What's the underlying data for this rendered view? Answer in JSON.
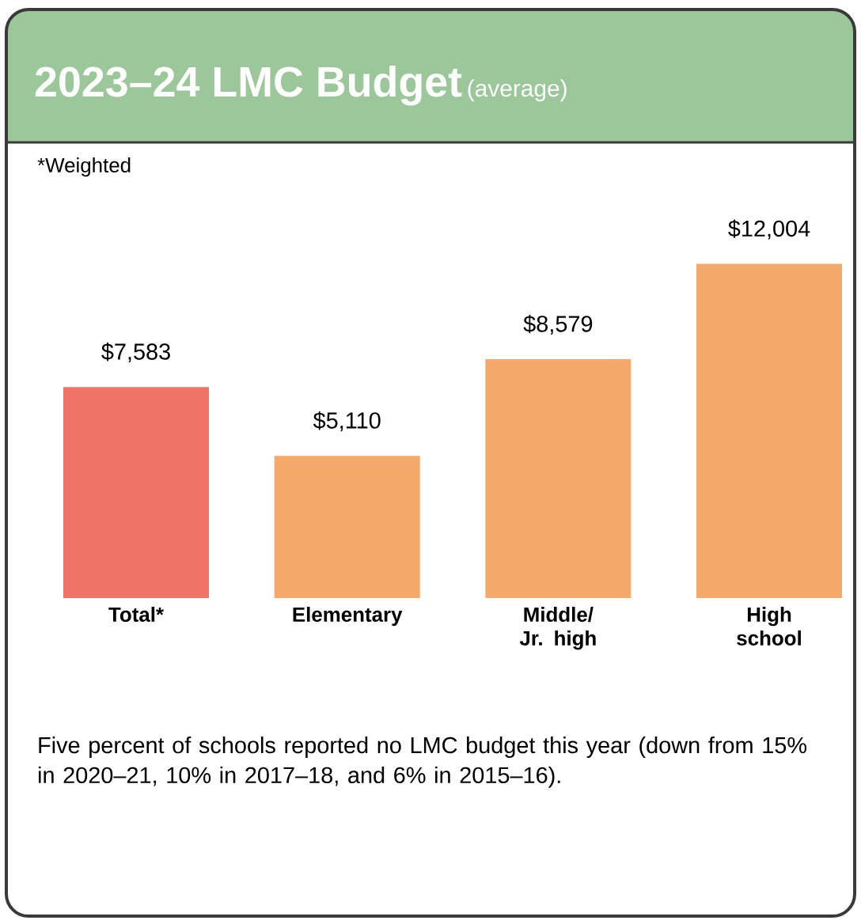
{
  "chart_data": {
    "type": "bar",
    "title": "2023–24 LMC Budget",
    "subtitle": "(average)",
    "categories": [
      "Total*",
      "Elementary",
      "Middle/ Jr. high",
      "High school"
    ],
    "values": [
      7583,
      5110,
      8579,
      12004
    ],
    "colors": [
      "#f07466",
      "#f5a96b",
      "#f5a96b",
      "#f5a96b"
    ],
    "value_labels": [
      "$7,583",
      "$5,110",
      "$8,579",
      "$12,004"
    ],
    "annotations": [
      "*Weighted",
      "Five percent of schools reported no LMC budget this year (down from 15% in 2020–21, 10% in 2017–18, and 6% in 2015–16)."
    ]
  }
}
